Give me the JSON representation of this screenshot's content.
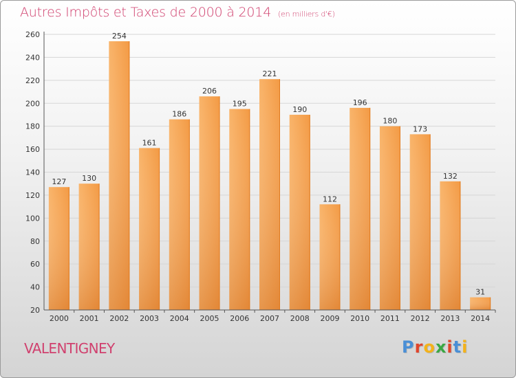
{
  "header": {
    "title": "Autres Impôts et Taxes de 2000 à 2014",
    "subtitle": "(en milliers d'€)"
  },
  "footer": {
    "city": "VALENTIGNEY",
    "logo_letters": [
      {
        "char": "P",
        "color": "#4a8fd6"
      },
      {
        "char": "r",
        "color": "#e0452b"
      },
      {
        "char": "o",
        "color": "#f3b21b"
      },
      {
        "char": "x",
        "color": "#3aa843"
      },
      {
        "char": "i",
        "color": "#e0452b"
      },
      {
        "char": "t",
        "color": "#4a8fd6"
      },
      {
        "char": "i",
        "color": "#f3b21b"
      }
    ]
  },
  "colors": {
    "accent": "#d0406e",
    "bar_light": "#f7a552",
    "bar_dark": "#e07a1e",
    "grid": "#d6d6d6",
    "axis_text": "#333333"
  },
  "chart_data": {
    "type": "bar",
    "title": "Autres Impôts et Taxes de 2000 à 2014",
    "subtitle": "(en milliers d'€)",
    "categories": [
      "2000",
      "2001",
      "2002",
      "2003",
      "2004",
      "2005",
      "2006",
      "2007",
      "2008",
      "2009",
      "2010",
      "2011",
      "2012",
      "2013",
      "2014"
    ],
    "values": [
      127,
      130,
      254,
      161,
      186,
      206,
      195,
      221,
      190,
      112,
      196,
      180,
      173,
      132,
      31
    ],
    "ylim": [
      20,
      260
    ],
    "yticks": [
      20,
      40,
      60,
      80,
      100,
      120,
      140,
      160,
      180,
      200,
      220,
      240,
      260
    ],
    "grid": true,
    "legend": "none"
  }
}
